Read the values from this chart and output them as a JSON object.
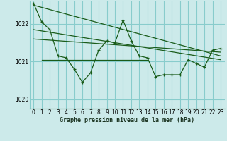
{
  "title": "Graphe pression niveau de la mer (hPa)",
  "bg_color": "#cceaea",
  "grid_color": "#88cccc",
  "line_color": "#1a5c1a",
  "xlim": [
    -0.5,
    23.5
  ],
  "ylim": [
    1019.75,
    1022.6
  ],
  "xticks": [
    0,
    1,
    2,
    3,
    4,
    5,
    6,
    7,
    8,
    9,
    10,
    11,
    12,
    13,
    14,
    15,
    16,
    17,
    18,
    19,
    20,
    21,
    22,
    23
  ],
  "yticks": [
    1020,
    1021,
    1022
  ],
  "series1_x": [
    0,
    1,
    2,
    3,
    4,
    5,
    6,
    7,
    8,
    9,
    10,
    11,
    12,
    13,
    14,
    15,
    16,
    17,
    18,
    19,
    20,
    21,
    22,
    23
  ],
  "series1_y": [
    1022.55,
    1022.05,
    1021.85,
    1021.15,
    1021.1,
    1020.8,
    1020.45,
    1020.7,
    1021.3,
    1021.55,
    1021.5,
    1022.1,
    1021.55,
    1021.15,
    1021.1,
    1020.6,
    1020.65,
    1020.65,
    1020.65,
    1021.05,
    1020.95,
    1020.85,
    1021.3,
    1021.35
  ],
  "trend1_x": [
    0,
    23
  ],
  "trend1_y": [
    1022.5,
    1021.15
  ],
  "trend2_x": [
    0,
    23
  ],
  "trend2_y": [
    1021.85,
    1021.05
  ],
  "trend3_x": [
    0,
    23
  ],
  "trend3_y": [
    1021.6,
    1021.25
  ],
  "flat_line_x": [
    1,
    14
  ],
  "flat_line_y": [
    1021.05,
    1021.05
  ],
  "title_fontsize": 6.0,
  "tick_fontsize": 5.5
}
